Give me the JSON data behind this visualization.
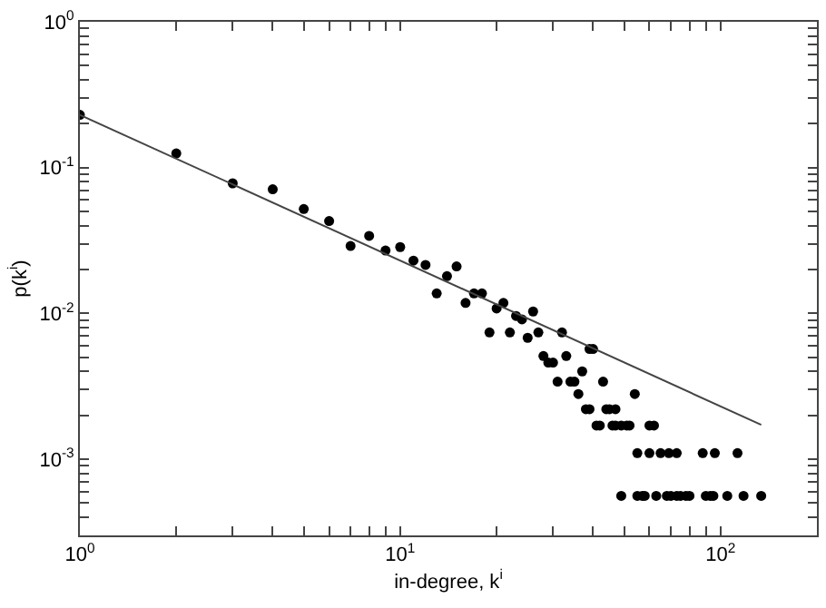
{
  "chart_data": {
    "type": "scatter",
    "xlabel": "in-degree, k$^{i}$",
    "ylabel": "p(k$^{i}$)",
    "log": "xy",
    "grid": false,
    "xlim": [
      1,
      200
    ],
    "ylim": [
      0.0003,
      1
    ],
    "xticks": [
      {
        "value": 1,
        "label": "10$^{0}$"
      },
      {
        "value": 2,
        "label": null
      },
      {
        "value": 3,
        "label": null
      },
      {
        "value": 4,
        "label": null
      },
      {
        "value": 5,
        "label": null
      },
      {
        "value": 6,
        "label": null
      },
      {
        "value": 7,
        "label": null
      },
      {
        "value": 8,
        "label": null
      },
      {
        "value": 9,
        "label": null
      },
      {
        "value": 10,
        "label": "10$^{1}$"
      },
      {
        "value": 20,
        "label": null
      },
      {
        "value": 30,
        "label": null
      },
      {
        "value": 40,
        "label": null
      },
      {
        "value": 50,
        "label": null
      },
      {
        "value": 60,
        "label": null
      },
      {
        "value": 70,
        "label": null
      },
      {
        "value": 80,
        "label": null
      },
      {
        "value": 90,
        "label": null
      },
      {
        "value": 100,
        "label": "10$^{2}$"
      }
    ],
    "yticks": [
      {
        "value": 0.0004,
        "label": null
      },
      {
        "value": 0.0005,
        "label": null
      },
      {
        "value": 0.0006,
        "label": null
      },
      {
        "value": 0.0007,
        "label": null
      },
      {
        "value": 0.0008,
        "label": null
      },
      {
        "value": 0.0009,
        "label": null
      },
      {
        "value": 0.001,
        "label": "10$^{-3}$"
      },
      {
        "value": 0.002,
        "label": null
      },
      {
        "value": 0.003,
        "label": null
      },
      {
        "value": 0.004,
        "label": null
      },
      {
        "value": 0.005,
        "label": null
      },
      {
        "value": 0.006,
        "label": null
      },
      {
        "value": 0.007,
        "label": null
      },
      {
        "value": 0.008,
        "label": null
      },
      {
        "value": 0.009,
        "label": null
      },
      {
        "value": 0.01,
        "label": "10$^{-2}$"
      },
      {
        "value": 0.02,
        "label": null
      },
      {
        "value": 0.03,
        "label": null
      },
      {
        "value": 0.04,
        "label": null
      },
      {
        "value": 0.05,
        "label": null
      },
      {
        "value": 0.06,
        "label": null
      },
      {
        "value": 0.07,
        "label": null
      },
      {
        "value": 0.08,
        "label": null
      },
      {
        "value": 0.09,
        "label": null
      },
      {
        "value": 0.1,
        "label": "10$^{-1}$"
      },
      {
        "value": 0.2,
        "label": null
      },
      {
        "value": 0.3,
        "label": null
      },
      {
        "value": 0.4,
        "label": null
      },
      {
        "value": 0.5,
        "label": null
      },
      {
        "value": 0.6,
        "label": null
      },
      {
        "value": 0.7,
        "label": null
      },
      {
        "value": 0.8,
        "label": null
      },
      {
        "value": 0.9,
        "label": null
      },
      {
        "value": 1,
        "label": "10$^{0}$"
      }
    ],
    "series": [
      {
        "marker": "circle",
        "color": "#000000",
        "x": [
          1,
          2,
          3,
          4,
          5,
          6,
          7,
          8,
          9,
          10,
          11,
          12,
          13,
          14,
          15,
          16,
          17,
          18,
          19,
          20,
          21,
          22,
          23,
          24,
          25,
          26,
          27,
          28,
          29,
          30,
          31,
          32,
          33,
          34,
          35,
          36,
          37,
          38,
          39,
          39,
          40,
          41,
          42,
          43,
          44,
          45,
          46,
          47,
          47,
          49,
          51,
          52,
          54,
          55,
          60,
          62,
          49,
          55,
          57,
          58,
          63,
          68,
          70,
          73,
          75,
          78,
          80,
          90,
          93,
          95,
          105,
          118,
          134,
          60,
          65,
          69,
          73,
          88,
          96,
          113
        ],
        "values": [
          0.23,
          0.125,
          0.078,
          0.071,
          0.052,
          0.043,
          0.029,
          0.034,
          0.027,
          0.0285,
          0.023,
          0.0215,
          0.0137,
          0.018,
          0.021,
          0.0118,
          0.0137,
          0.0137,
          0.0074,
          0.0108,
          0.0118,
          0.0074,
          0.0096,
          0.0091,
          0.0068,
          0.0103,
          0.0074,
          0.0051,
          0.0046,
          0.0046,
          0.0034,
          0.0074,
          0.0051,
          0.0034,
          0.0034,
          0.0028,
          0.004,
          0.0022,
          0.0022,
          0.0057,
          0.0057,
          0.0017,
          0.0017,
          0.0034,
          0.0022,
          0.0022,
          0.0017,
          0.0022,
          0.0017,
          0.0017,
          0.0017,
          0.0017,
          0.0028,
          0.0011,
          0.0017,
          0.0017,
          0.00056,
          0.00056,
          0.00056,
          0.00056,
          0.00056,
          0.00056,
          0.00056,
          0.00056,
          0.00056,
          0.00056,
          0.00056,
          0.00056,
          0.00056,
          0.00056,
          0.00056,
          0.00056,
          0.00056,
          0.0011,
          0.0011,
          0.0011,
          0.0011,
          0.0011,
          0.0011,
          0.0011
        ]
      },
      {
        "type": "line",
        "marker": "none",
        "color": "#444444",
        "line_style": "solid",
        "x": [
          1,
          134
        ],
        "values": [
          0.23,
          0.00172
        ]
      }
    ]
  }
}
